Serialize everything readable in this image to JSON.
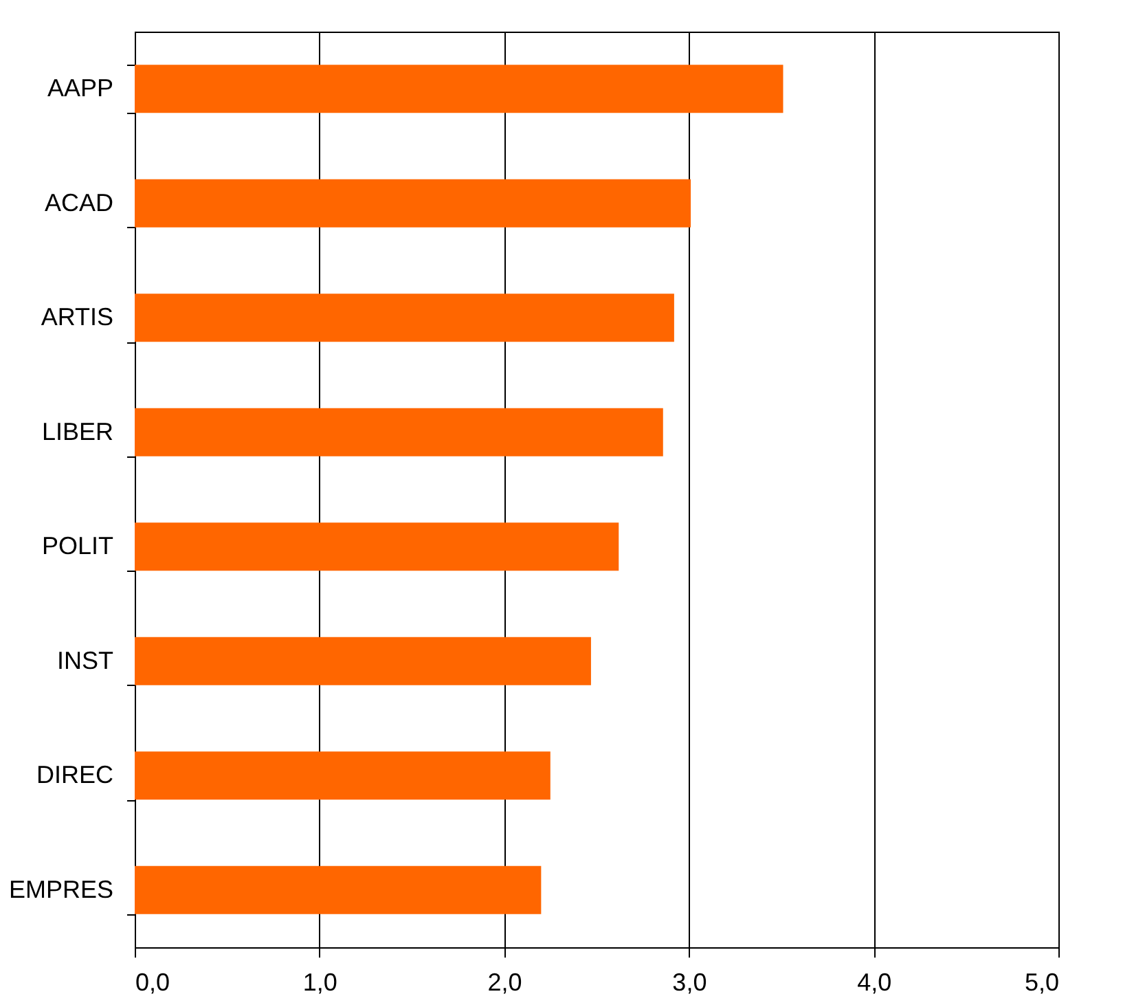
{
  "chart_data": {
    "type": "bar",
    "orientation": "horizontal",
    "categories": [
      "AAPP",
      "ACAD",
      "ARTIS",
      "LIBER",
      "POLIT",
      "INST",
      "DIREC",
      "EMPRES"
    ],
    "values": [
      3.51,
      3.01,
      2.92,
      2.86,
      2.62,
      2.47,
      2.25,
      2.2
    ],
    "color": "#ff6600",
    "xlim": [
      0,
      5
    ],
    "xticks": [
      {
        "value": 0,
        "label": "0,0"
      },
      {
        "value": 1,
        "label": "1,0"
      },
      {
        "value": 2,
        "label": "2,0"
      },
      {
        "value": 3,
        "label": "3,0"
      },
      {
        "value": 4,
        "label": "4,0"
      },
      {
        "value": 5,
        "label": "5,0"
      }
    ],
    "grid": "x"
  }
}
